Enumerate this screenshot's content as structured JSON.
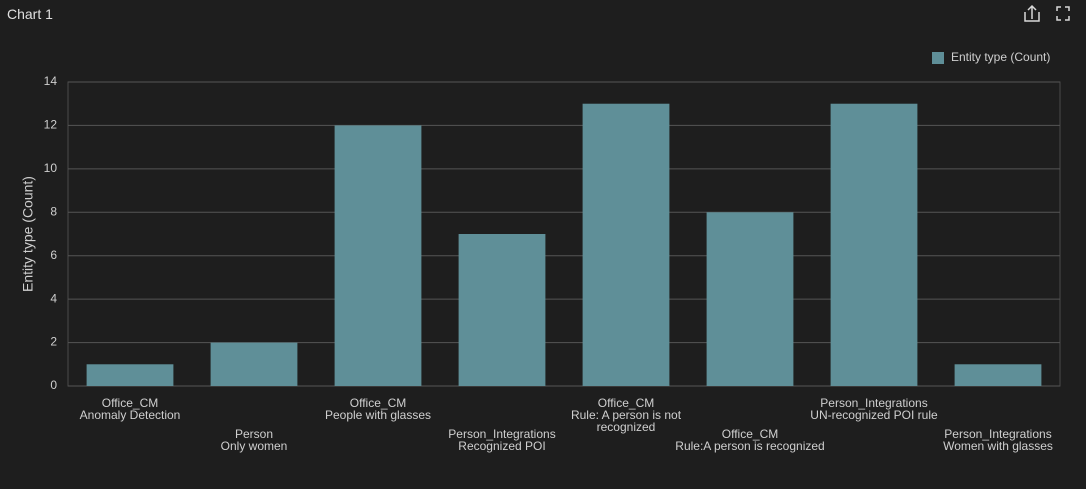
{
  "header": {
    "title": "Chart 1"
  },
  "chart_data": {
    "type": "bar",
    "y_label": "Entity type (Count)",
    "categories": [
      "Office_CM\nAnomaly Detection",
      "Person\nOnly women",
      "Office_CM\nPeople with glasses",
      "Person_Integrations\nRecognized POI",
      "Office_CM\nRule: A person is not recognized",
      "Office_CM\nRule:A person is recognized",
      "Person_Integrations\nUN-recognized POI rule",
      "Person_Integrations\nWomen with glasses"
    ],
    "series": [
      {
        "name": "Entity type (Count)",
        "color": "#5f8f98",
        "values": [
          1,
          2,
          12,
          7,
          13,
          8,
          13,
          1
        ]
      }
    ],
    "ylim": [
      0,
      14
    ],
    "yticks": [
      0,
      2,
      4,
      6,
      8,
      10,
      12,
      14
    ],
    "grid": true,
    "legend": "top-right"
  }
}
